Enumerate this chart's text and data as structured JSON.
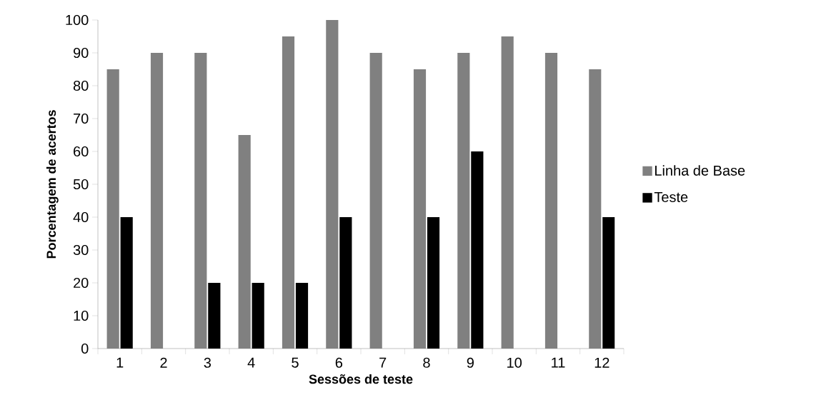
{
  "chart_data": {
    "type": "bar",
    "xlabel": "Sessões de teste",
    "ylabel": "Porcentagem de acertos",
    "categories": [
      "1",
      "2",
      "3",
      "4",
      "5",
      "6",
      "7",
      "8",
      "9",
      "10",
      "11",
      "12"
    ],
    "series": [
      {
        "name": "Linha de Base",
        "color": "#808080",
        "values": [
          85,
          90,
          90,
          65,
          95,
          100,
          90,
          85,
          90,
          95,
          90,
          85
        ]
      },
      {
        "name": "Teste",
        "color": "#000000",
        "values": [
          40,
          null,
          20,
          20,
          20,
          40,
          null,
          40,
          60,
          null,
          null,
          40
        ]
      }
    ],
    "ylim": [
      0,
      100
    ],
    "yticks": [
      0,
      10,
      20,
      30,
      40,
      50,
      60,
      70,
      80,
      90,
      100
    ],
    "legend": "right"
  }
}
